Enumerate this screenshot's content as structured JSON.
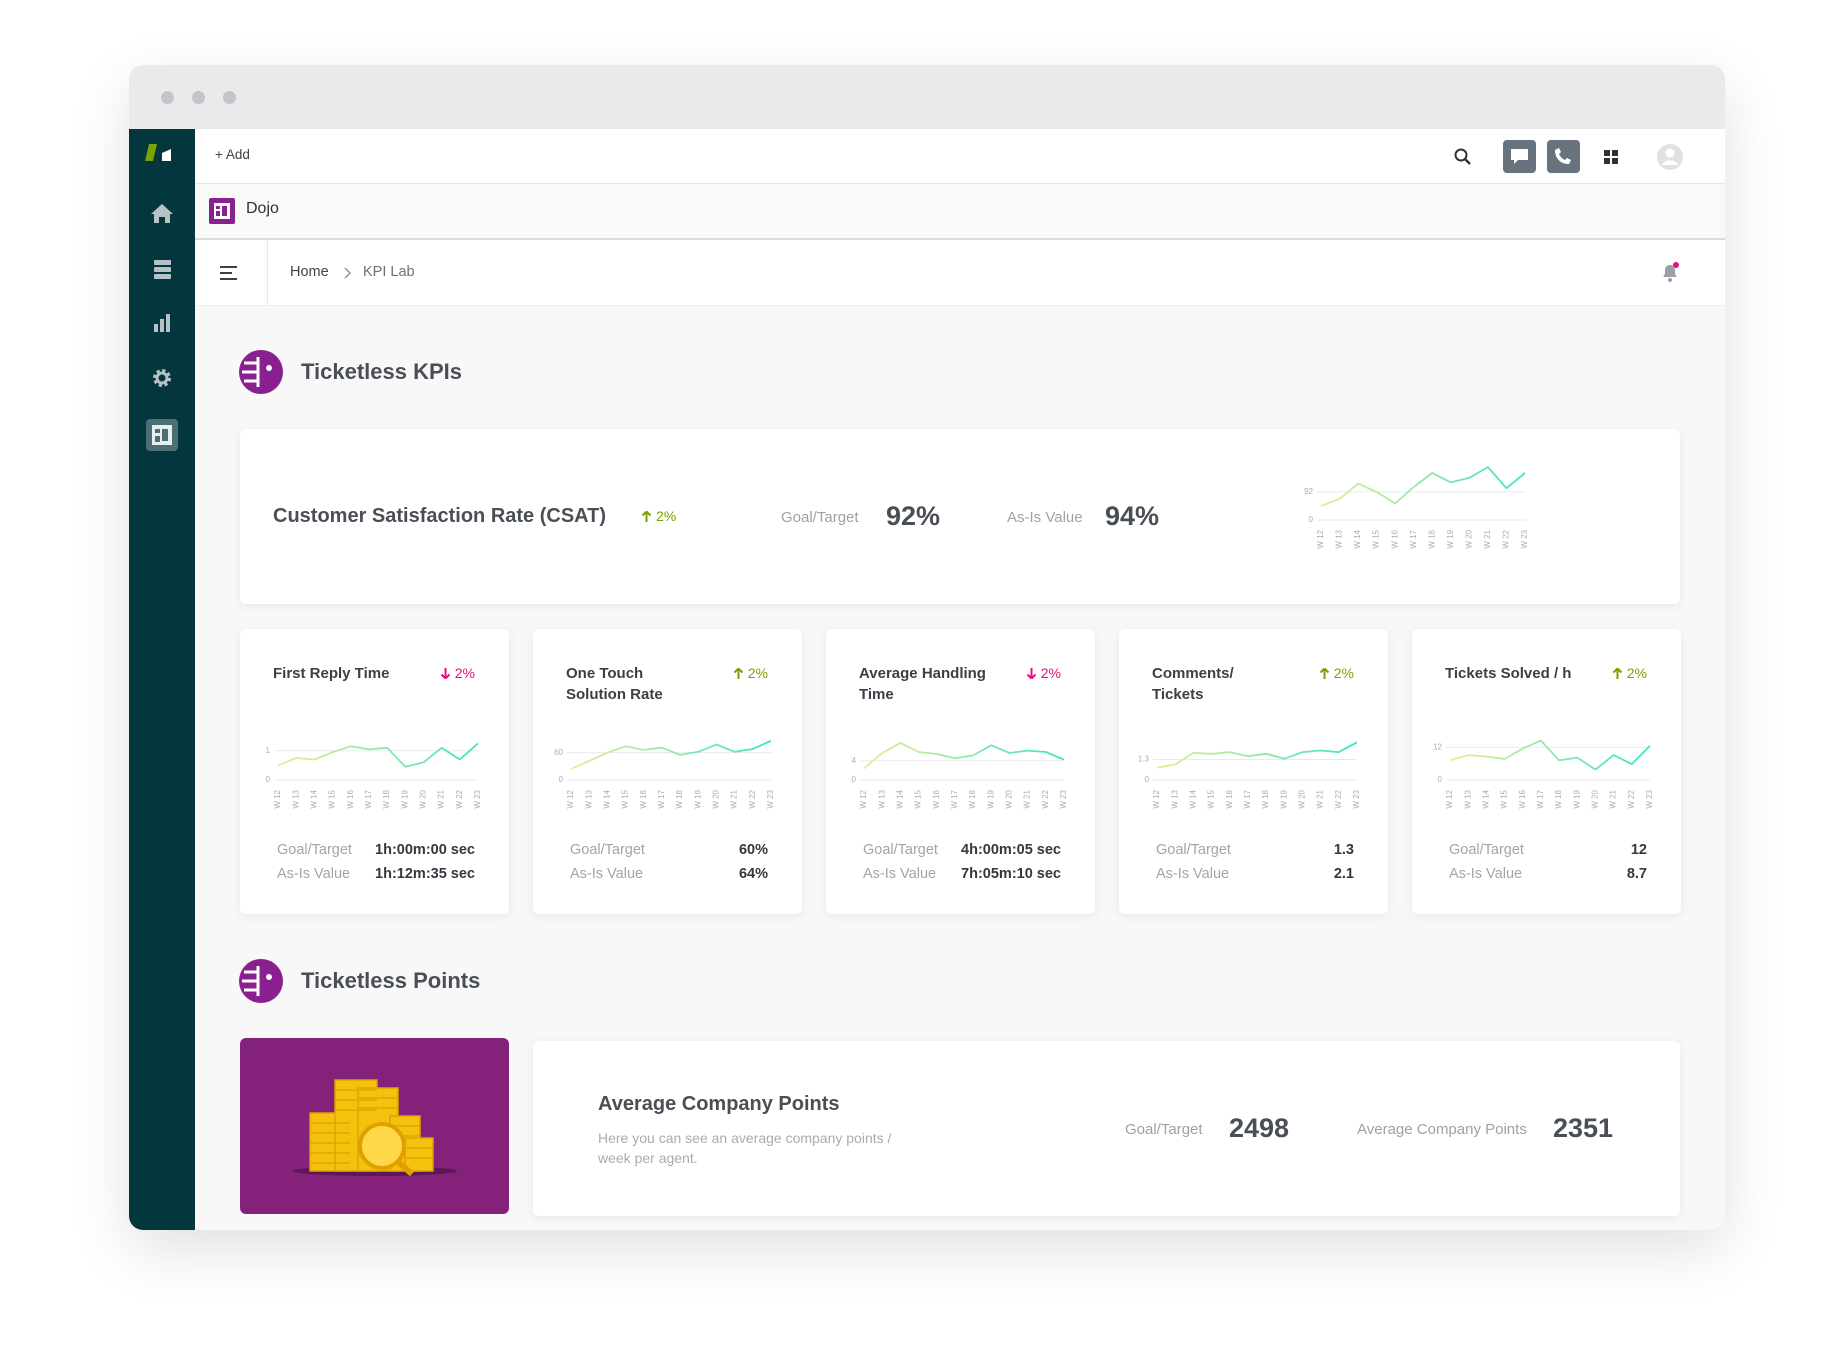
{
  "topbar": {
    "add": "Add"
  },
  "app": {
    "name": "Dojo"
  },
  "breadcrumb": {
    "home": "Home",
    "current": "KPI Lab"
  },
  "sections": [
    {
      "title": "Ticketless KPIs"
    },
    {
      "title": "Ticketless Points"
    }
  ],
  "csat": {
    "title": "Customer Satisfaction Rate (CSAT)",
    "change": "2%",
    "trend": "up",
    "goal_label": "Goal/Target",
    "goal": "92%",
    "asis_label": "As-Is Value",
    "asis": "94%",
    "chart": {
      "type": "line",
      "colors": [
        "#e6ee8e",
        "#3ee3c6"
      ],
      "categories": [
        "W 12",
        "W 13",
        "W 14",
        "W 15",
        "W 16",
        "W 17",
        "W 18",
        "W 19",
        "W 20",
        "W 21",
        "W 22",
        "W 23"
      ],
      "values": [
        46,
        69,
        119,
        92,
        54,
        108,
        154,
        123,
        138,
        173,
        104,
        154
      ],
      "ylim": [
        0,
        180
      ],
      "yticks": [
        0,
        92
      ]
    }
  },
  "kpis": [
    {
      "title": "First Reply Time",
      "change": "2%",
      "trend": "down",
      "goal_label": "Goal/Target",
      "goal": "1h:00m:00 sec",
      "asis_label": "As-Is Value",
      "asis": "1h:12m:35 sec",
      "chart": {
        "type": "line",
        "colors": [
          "#e6ee8e",
          "#3ee3c6"
        ],
        "categories": [
          "W 12",
          "W 13",
          "W 14",
          "W 15",
          "W 16",
          "W 17",
          "W 18",
          "W 19",
          "W 20",
          "W 21",
          "W 22",
          "W 23"
        ],
        "values": [
          0.5,
          0.75,
          0.7,
          0.95,
          1.15,
          1.05,
          1.1,
          0.45,
          0.6,
          1.1,
          0.7,
          1.25
        ],
        "ylim": [
          0,
          1.4
        ],
        "yticks": [
          0,
          1
        ]
      }
    },
    {
      "title": "One Touch Solution Rate",
      "change": "2%",
      "trend": "up",
      "goal_label": "Goal/Target",
      "goal": "60%",
      "asis_label": "As-Is Value",
      "asis": "64%",
      "chart": {
        "type": "line",
        "colors": [
          "#e6ee8e",
          "#3ee3c6"
        ],
        "categories": [
          "W 12",
          "W 13",
          "W 14",
          "W 15",
          "W 16",
          "W 17",
          "W 18",
          "W 19",
          "W 20",
          "W 21",
          "W 22",
          "W 23"
        ],
        "values": [
          24,
          42,
          60,
          74,
          66,
          71,
          55,
          62,
          78,
          62,
          68,
          86
        ],
        "ylim": [
          0,
          90
        ],
        "yticks": [
          0,
          60
        ]
      }
    },
    {
      "title": "Average Handling Time",
      "change": "2%",
      "trend": "down",
      "goal_label": "Goal/Target",
      "goal": "4h:00m:05 sec",
      "asis_label": "As-Is Value",
      "asis": "7h:05m:10 sec",
      "chart": {
        "type": "line",
        "colors": [
          "#e6ee8e",
          "#3ee3c6"
        ],
        "categories": [
          "W 12",
          "W 13",
          "W 14",
          "W 15",
          "W 16",
          "W 17",
          "W 18",
          "W 19",
          "W 20",
          "W 21",
          "W 22",
          "W 23"
        ],
        "values": [
          2.4,
          5.6,
          7.7,
          5.8,
          5.4,
          4.5,
          5.1,
          7.2,
          5.6,
          6.1,
          5.8,
          4.2
        ],
        "ylim": [
          0,
          8.5
        ],
        "yticks": [
          0,
          4
        ]
      }
    },
    {
      "title": "Comments/ Tickets",
      "change": "2%",
      "trend": "up",
      "goal_label": "Goal/Target",
      "goal": "1.3",
      "asis_label": "As-Is Value",
      "asis": "2.1",
      "chart": {
        "type": "line",
        "colors": [
          "#e6ee8e",
          "#3ee3c6"
        ],
        "categories": [
          "W 12",
          "W 13",
          "W 14",
          "W 15",
          "W 16",
          "W 17",
          "W 18",
          "W 19",
          "W 20",
          "W 21",
          "W 22",
          "W 23"
        ],
        "values": [
          0.78,
          0.99,
          1.72,
          1.66,
          1.77,
          1.51,
          1.66,
          1.35,
          1.77,
          1.87,
          1.77,
          2.39
        ],
        "ylim": [
          0,
          2.6
        ],
        "yticks": [
          0,
          1.3
        ]
      }
    },
    {
      "title": "Tickets Solved / h",
      "change": "2%",
      "trend": "up",
      "goal_label": "Goal/Target",
      "goal": "12",
      "asis_label": "As-Is Value",
      "asis": "8.7",
      "chart": {
        "type": "line",
        "colors": [
          "#e6ee8e",
          "#3ee3c6"
        ],
        "categories": [
          "W 12",
          "W 13",
          "W 14",
          "W 15",
          "W 16",
          "W 17",
          "W 18",
          "W 19",
          "W 20",
          "W 21",
          "W 22",
          "W 23"
        ],
        "values": [
          7.2,
          9.1,
          8.6,
          7.7,
          11.5,
          14.4,
          7.2,
          8.2,
          3.8,
          9.1,
          5.8,
          12.5
        ],
        "ylim": [
          0,
          15
        ],
        "yticks": [
          0,
          12
        ]
      }
    }
  ],
  "points": {
    "title": "Average Company Points",
    "description": "Here you can see an average company points / week per agent.",
    "goal_label": "Goal/Target",
    "goal": 2498,
    "value_label": "Average Company Points",
    "value": 2351
  }
}
